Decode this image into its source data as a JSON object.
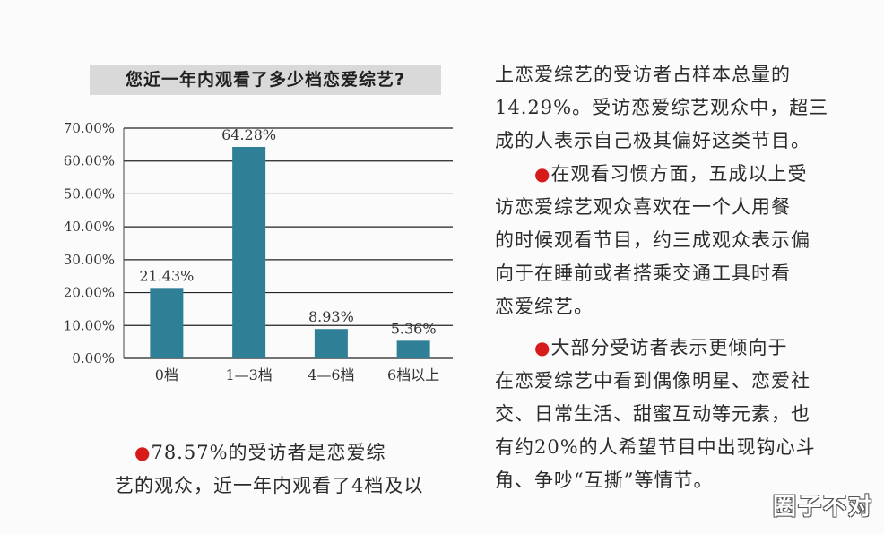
{
  "chart_data": {
    "type": "bar",
    "title": "您近一年内观看了多少档恋爱综艺?",
    "categories": [
      "0档",
      "1—3档",
      "4—6档",
      "6档以上"
    ],
    "values": [
      21.43,
      64.28,
      8.93,
      5.36
    ],
    "value_labels": [
      "21.43%",
      "64.28%",
      "8.93%",
      "5.36%"
    ],
    "ytick_labels": [
      "0.00%",
      "10.00%",
      "20.00%",
      "30.00%",
      "40.00%",
      "50.00%",
      "60.00%",
      "70.00%"
    ],
    "ytick_values": [
      0,
      10,
      20,
      30,
      40,
      50,
      60,
      70
    ],
    "ylim": [
      0,
      70
    ],
    "grid": true,
    "legend": "none",
    "colors": {
      "bar": "#2f7f97",
      "grid": "#222222"
    }
  },
  "text": {
    "left_para": {
      "line1": "78.57%的受访者是恋爱综",
      "line2": "艺的观众，近一年内观看了4档及以"
    },
    "right_para1": {
      "line1": "上恋爱综艺的受访者占样本总量的",
      "line2": "14.29%。受访恋爱综艺观众中，超三",
      "line3": "成的人表示自己极其偏好这类节目。"
    },
    "right_para2": {
      "line1": "在观看习惯方面，五成以上受",
      "line2": "访恋爱综艺观众喜欢在一个人用餐",
      "line3": "的时候观看节目，约三成观众表示偏",
      "line4": "向于在睡前或者搭乘交通工具时看",
      "line5": "恋爱综艺。"
    },
    "right_para3": {
      "line1": "大部分受访者表示更倾向于",
      "line2": "在恋爱综艺中看到偶像明星、恋爱社",
      "line3": "交、日常生活、甜蜜互动等元素，也",
      "line4": "有约20%的人希望节目中出现钩心斗",
      "line5": "角、争吵“互撕”等情节。"
    },
    "bullet": "●"
  },
  "watermark": "圈子不对"
}
